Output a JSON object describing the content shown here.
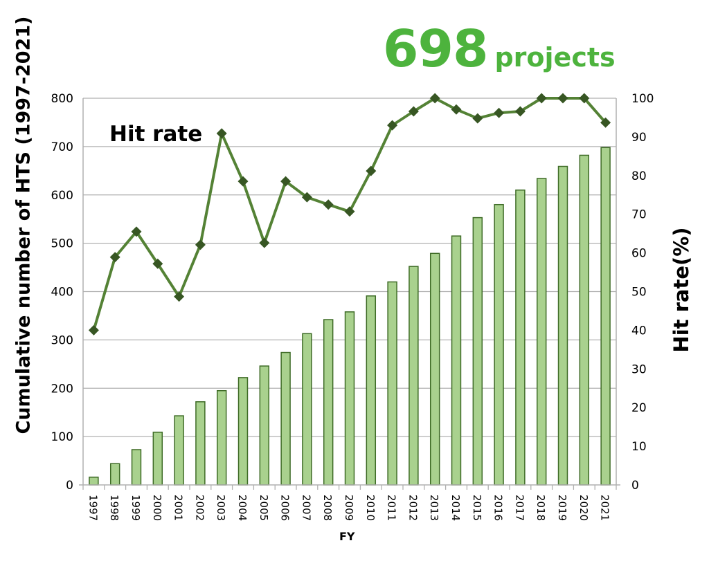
{
  "headline": {
    "value": "698",
    "unit": "projects"
  },
  "chart_data": {
    "type": "bar+line",
    "title": "",
    "xlabel": "FY",
    "ylabel": "Cumulative number of HTS (1997-2021)",
    "y2label": "Hit rate(%)",
    "annotation": "Hit rate",
    "ylim": [
      0,
      800
    ],
    "y2lim": [
      0,
      100
    ],
    "yticks": [
      0,
      100,
      200,
      300,
      400,
      500,
      600,
      700,
      800
    ],
    "y2ticks": [
      0,
      10,
      20,
      30,
      40,
      50,
      60,
      70,
      80,
      90,
      100
    ],
    "grid": true,
    "categories": [
      "1997",
      "1998",
      "1999",
      "2000",
      "2001",
      "2002",
      "2003",
      "2004",
      "2005",
      "2006",
      "2007",
      "2008",
      "2009",
      "2010",
      "2011",
      "2012",
      "2013",
      "2014",
      "2015",
      "2016",
      "2017",
      "2018",
      "2019",
      "2020",
      "2021"
    ],
    "series": [
      {
        "name": "Cumulative number of HTS",
        "type": "bar",
        "axis": "left",
        "values": [
          16,
          44,
          73,
          109,
          143,
          172,
          195,
          222,
          246,
          274,
          313,
          342,
          358,
          391,
          420,
          452,
          479,
          515,
          553,
          580,
          610,
          634,
          659,
          682,
          698
        ]
      },
      {
        "name": "Hit rate",
        "type": "line",
        "axis": "right",
        "values": [
          40,
          58.9,
          65.5,
          57.2,
          48.7,
          62.1,
          90.9,
          78.5,
          62.6,
          78.5,
          74.4,
          72.5,
          70.7,
          81.2,
          93,
          96.6,
          100,
          97.1,
          94.8,
          96.2,
          96.6,
          100,
          100,
          100,
          93.7
        ]
      }
    ],
    "colors": {
      "bar_fill": "#a9d18e",
      "bar_stroke": "#3e6b26",
      "line": "#548235",
      "marker": "#375623",
      "grid": "#b0b0b0",
      "headline": "#4db33d"
    }
  }
}
